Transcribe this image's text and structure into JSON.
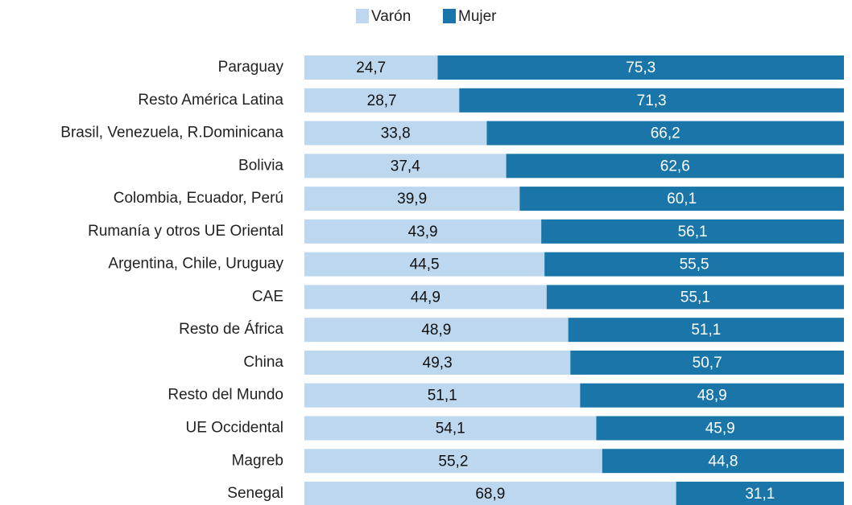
{
  "chart_data": {
    "type": "stacked_barh",
    "categories": [
      "Paraguay",
      "Resto América Latina",
      "Brasil, Venezuela, R.Dominicana",
      "Bolivia",
      "Colombia, Ecuador, Perú",
      "Rumanía y otros UE Oriental",
      "Argentina, Chile, Uruguay",
      "CAE",
      "Resto de África",
      "China",
      "Resto del Mundo",
      "UE Occidental",
      "Magreb",
      "Senegal"
    ],
    "series": [
      {
        "name": "Varón",
        "color": "#bdd7ee",
        "values": [
          24.7,
          28.7,
          33.8,
          37.4,
          39.9,
          43.9,
          44.5,
          44.9,
          48.9,
          49.3,
          51.1,
          54.1,
          55.2,
          68.9
        ],
        "value_labels": [
          "24,7",
          "28,7",
          "33,8",
          "37,4",
          "39,9",
          "43,9",
          "44,5",
          "44,9",
          "48,9",
          "49,3",
          "51,1",
          "54,1",
          "55,2",
          "68,9"
        ]
      },
      {
        "name": "Mujer",
        "color": "#1a75a8",
        "values": [
          75.3,
          71.3,
          66.2,
          62.6,
          60.1,
          56.1,
          55.5,
          55.1,
          51.1,
          50.7,
          48.9,
          45.9,
          44.8,
          31.1
        ],
        "value_labels": [
          "75,3",
          "71,3",
          "66,2",
          "62,6",
          "60,1",
          "56,1",
          "55,5",
          "55,1",
          "51,1",
          "50,7",
          "48,9",
          "45,9",
          "44,8",
          "31,1"
        ]
      }
    ],
    "legend": "top"
  }
}
